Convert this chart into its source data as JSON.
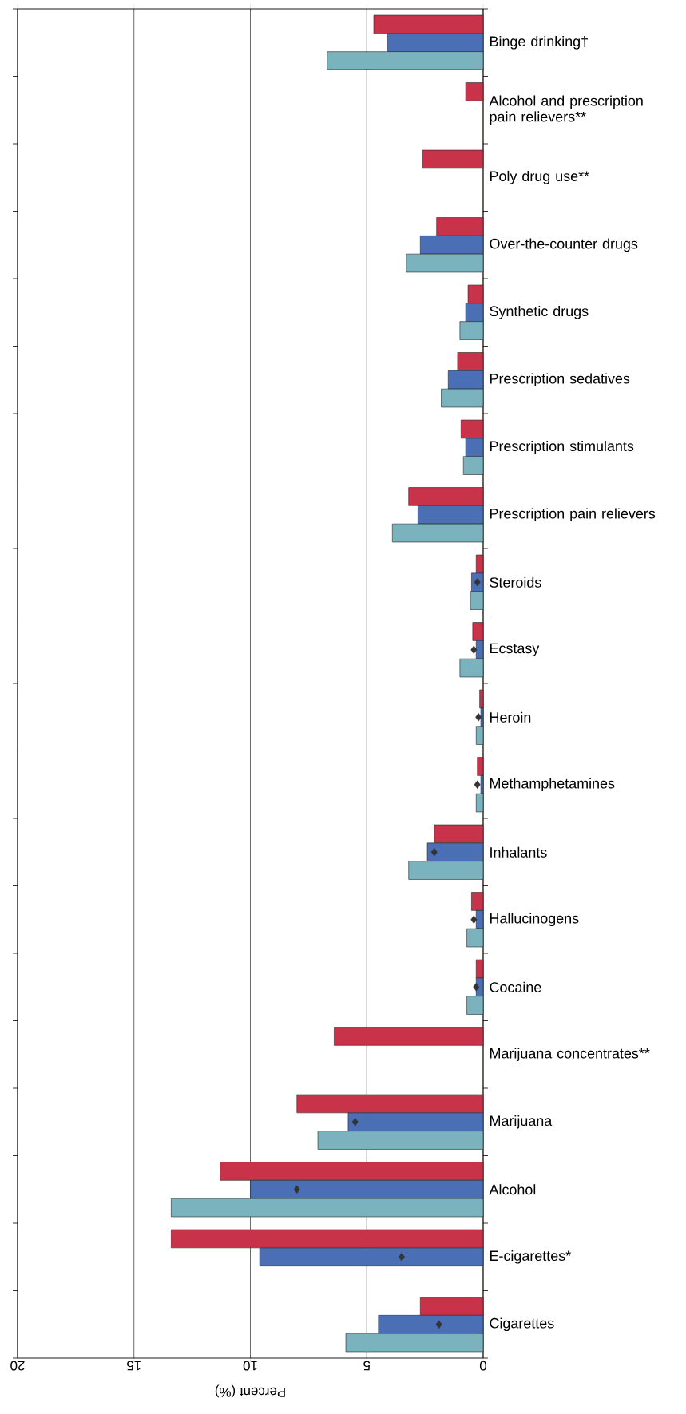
{
  "chart_data": {
    "type": "bar",
    "orientation": "horizontal",
    "xlabel": "Percent (%)",
    "categories": [
      "Binge drinking†",
      "Alcohol and prescription pain relievers**",
      "Poly drug use**",
      "Over-the-counter drugs",
      "Synthetic drugs",
      "Prescription sedatives",
      "Prescription stimulants",
      "Prescription pain relievers",
      "Steroids",
      "Ecstasy",
      "Heroin",
      "Methamphetamines",
      "Inhalants",
      "Hallucinogens",
      "Cocaine",
      "Marijuana concentrates**",
      "Marijuana",
      "Alcohol",
      "E-cigarettes*",
      "Cigarettes"
    ],
    "series": [
      {
        "color": "#c8334a",
        "values": [
          4.7,
          0.75,
          2.6,
          2.0,
          0.65,
          1.1,
          0.95,
          3.2,
          0.3,
          0.45,
          0.15,
          0.25,
          2.1,
          0.5,
          0.3,
          6.4,
          8.0,
          11.3,
          13.4,
          2.7
        ]
      },
      {
        "color": "#4a6fb5",
        "values": [
          4.1,
          null,
          null,
          2.7,
          0.75,
          1.5,
          0.75,
          2.8,
          0.5,
          0.3,
          0.1,
          0.1,
          2.4,
          0.3,
          0.3,
          null,
          5.8,
          10.0,
          9.6,
          4.5
        ]
      },
      {
        "color": "#7ab3be",
        "values": [
          6.7,
          null,
          null,
          3.3,
          1.0,
          1.8,
          0.85,
          3.9,
          0.55,
          1.0,
          0.3,
          0.3,
          3.2,
          0.7,
          0.7,
          null,
          7.1,
          13.4,
          null,
          5.9
        ]
      },
      {
        "type": "scatter",
        "marker": "diamond",
        "color": "#333333",
        "values": [
          null,
          null,
          null,
          null,
          null,
          null,
          null,
          null,
          0.25,
          0.4,
          0.2,
          0.25,
          2.1,
          0.4,
          0.3,
          null,
          5.5,
          8.0,
          3.5,
          1.9
        ]
      }
    ],
    "xlim": [
      20,
      0
    ],
    "xticks": [
      0,
      5,
      10,
      15,
      20
    ],
    "grid": "x"
  }
}
